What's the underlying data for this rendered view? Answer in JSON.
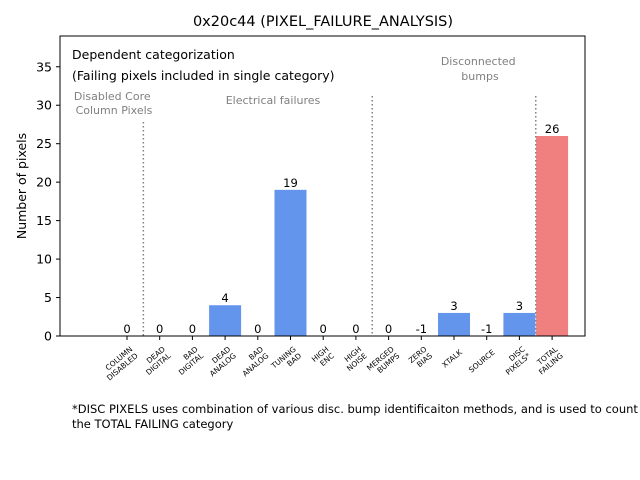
{
  "chart_data": {
    "type": "bar",
    "title": "0x20c44 (PIXEL_FAILURE_ANALYSIS)",
    "xlabel": "",
    "ylabel": "Number of pixels",
    "ylim": [
      0,
      39
    ],
    "yticks": [
      0,
      5,
      10,
      15,
      20,
      25,
      30,
      35
    ],
    "grid": false,
    "categories": [
      [
        "COLUMN",
        "DISABLED"
      ],
      [
        "DEAD",
        "DIGITAL"
      ],
      [
        "BAD",
        "DIGITAL"
      ],
      [
        "DEAD",
        "ANALOG"
      ],
      [
        "BAD",
        "ANALOG"
      ],
      [
        "TUNING",
        "BAD"
      ],
      [
        "HIGH",
        "ENC"
      ],
      [
        "HIGH",
        "NOISE"
      ],
      [
        "MERGED",
        "BUMPS"
      ],
      [
        "ZERO",
        "BIAS"
      ],
      [
        "XTALK"
      ],
      [
        "SOURCE"
      ],
      [
        "DISC",
        "PIXELS*"
      ],
      [
        "TOTAL",
        "FAILING"
      ]
    ],
    "values": [
      0,
      0,
      0,
      4,
      0,
      19,
      0,
      0,
      0,
      -1,
      3,
      -1,
      3,
      26
    ],
    "colors": [
      "#6495ed",
      "#6495ed",
      "#6495ed",
      "#6495ed",
      "#6495ed",
      "#6495ed",
      "#6495ed",
      "#6495ed",
      "#6495ed",
      "#6495ed",
      "#6495ed",
      "#6495ed",
      "#6495ed",
      "#f08080"
    ],
    "legend_box": {
      "line1": "Dependent categorization",
      "line2": "(Failing pixels included in single category)"
    },
    "group_labels": [
      {
        "text": [
          "Disabled Core",
          "Column Pixels"
        ]
      },
      {
        "text": [
          "Electrical failures"
        ]
      },
      {
        "text": [
          "Disconnected",
          "bumps"
        ]
      }
    ],
    "separators_after_index": [
      0,
      7,
      12
    ],
    "footnote": "*DISC PIXELS uses combination of various disc. bump identificaiton methods, and is used to count the TOTAL FAILING category"
  }
}
